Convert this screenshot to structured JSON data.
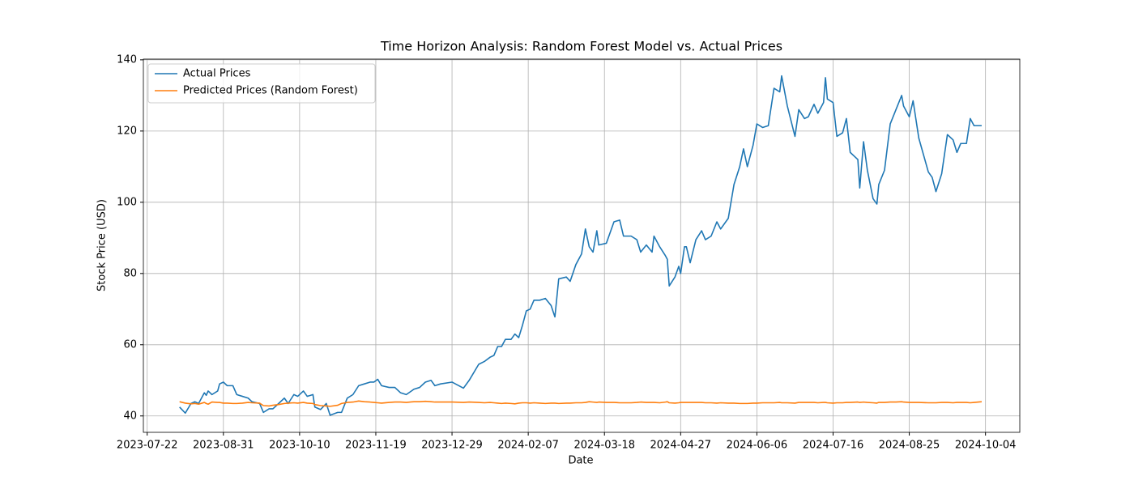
{
  "chart_data": {
    "type": "line",
    "title": "Time Horizon Analysis: Random Forest Model vs. Actual Prices",
    "x_label": "Date",
    "y_label": "Stock Price (USD)",
    "x": [
      "2023-08-08",
      "2023-08-11",
      "2023-08-14",
      "2023-08-16",
      "2023-08-18",
      "2023-08-21",
      "2023-08-22",
      "2023-08-23",
      "2023-08-25",
      "2023-08-28",
      "2023-08-29",
      "2023-08-31",
      "2023-09-02",
      "2023-09-05",
      "2023-09-07",
      "2023-09-10",
      "2023-09-13",
      "2023-09-15",
      "2023-09-19",
      "2023-09-21",
      "2023-09-24",
      "2023-09-26",
      "2023-09-29",
      "2023-10-02",
      "2023-10-04",
      "2023-10-07",
      "2023-10-09",
      "2023-10-12",
      "2023-10-14",
      "2023-10-17",
      "2023-10-18",
      "2023-10-21",
      "2023-10-24",
      "2023-10-26",
      "2023-10-30",
      "2023-11-01",
      "2023-11-04",
      "2023-11-07",
      "2023-11-10",
      "2023-11-13",
      "2023-11-16",
      "2023-11-18",
      "2023-11-20",
      "2023-11-22",
      "2023-11-26",
      "2023-11-29",
      "2023-12-02",
      "2023-12-05",
      "2023-12-09",
      "2023-12-12",
      "2023-12-15",
      "2023-12-18",
      "2023-12-20",
      "2023-12-23",
      "2023-12-29",
      "2024-01-04",
      "2024-01-07",
      "2024-01-12",
      "2024-01-15",
      "2024-01-18",
      "2024-01-20",
      "2024-01-22",
      "2024-01-24",
      "2024-01-26",
      "2024-01-29",
      "2024-01-31",
      "2024-02-02",
      "2024-02-04",
      "2024-02-06",
      "2024-02-08",
      "2024-02-10",
      "2024-02-13",
      "2024-02-16",
      "2024-02-19",
      "2024-02-21",
      "2024-02-23",
      "2024-02-27",
      "2024-02-29",
      "2024-03-03",
      "2024-03-06",
      "2024-03-08",
      "2024-03-10",
      "2024-03-12",
      "2024-03-14",
      "2024-03-15",
      "2024-03-19",
      "2024-03-23",
      "2024-03-26",
      "2024-03-28",
      "2024-04-01",
      "2024-04-04",
      "2024-04-06",
      "2024-04-09",
      "2024-04-12",
      "2024-04-13",
      "2024-04-16",
      "2024-04-19",
      "2024-04-20",
      "2024-04-21",
      "2024-04-24",
      "2024-04-26",
      "2024-04-27",
      "2024-04-29",
      "2024-04-30",
      "2024-05-02",
      "2024-05-05",
      "2024-05-08",
      "2024-05-10",
      "2024-05-13",
      "2024-05-16",
      "2024-05-18",
      "2024-05-22",
      "2024-05-25",
      "2024-05-28",
      "2024-05-30",
      "2024-06-01",
      "2024-06-04",
      "2024-06-06",
      "2024-06-09",
      "2024-06-12",
      "2024-06-15",
      "2024-06-18",
      "2024-06-19",
      "2024-06-22",
      "2024-06-26",
      "2024-06-28",
      "2024-07-01",
      "2024-07-03",
      "2024-07-06",
      "2024-07-08",
      "2024-07-11",
      "2024-07-12",
      "2024-07-13",
      "2024-07-16",
      "2024-07-18",
      "2024-07-21",
      "2024-07-23",
      "2024-07-25",
      "2024-07-29",
      "2024-07-30",
      "2024-08-01",
      "2024-08-03",
      "2024-08-06",
      "2024-08-08",
      "2024-08-09",
      "2024-08-12",
      "2024-08-15",
      "2024-08-18",
      "2024-08-21",
      "2024-08-22",
      "2024-08-25",
      "2024-08-27",
      "2024-08-30",
      "2024-09-04",
      "2024-09-06",
      "2024-09-08",
      "2024-09-11",
      "2024-09-14",
      "2024-09-17",
      "2024-09-19",
      "2024-09-21",
      "2024-09-24",
      "2024-09-26",
      "2024-09-28",
      "2024-10-02"
    ],
    "series": [
      {
        "name": "Actual Prices",
        "color": "#1f77b4",
        "values": [
          42.5,
          40.8,
          43.5,
          44,
          43.5,
          46.5,
          45.8,
          47,
          46,
          47,
          49,
          49.5,
          48.5,
          48.5,
          46,
          45.5,
          45,
          44,
          43.5,
          41,
          42,
          42,
          43.5,
          45,
          43.5,
          46,
          45.5,
          47,
          45.5,
          46,
          42.5,
          41.8,
          43.5,
          40.2,
          41,
          41,
          45,
          46,
          48.5,
          49,
          49.5,
          49.5,
          50.3,
          48.5,
          48,
          48,
          46.5,
          46,
          47.5,
          48,
          49.5,
          50,
          48.5,
          49,
          49.5,
          47.8,
          50,
          54.5,
          55.3,
          56.5,
          57,
          59.5,
          59.5,
          61.5,
          61.5,
          63,
          62,
          65.5,
          69.5,
          70,
          72.5,
          72.5,
          73,
          71,
          67.8,
          78.5,
          79,
          77.8,
          82.5,
          85.5,
          92.5,
          87.5,
          86,
          92,
          88,
          88.5,
          94.5,
          95,
          90.5,
          90.5,
          89.5,
          86,
          88,
          86,
          90.5,
          87.5,
          85,
          84,
          76.5,
          79,
          82,
          80,
          87.5,
          87.5,
          83,
          89.5,
          92,
          89.5,
          90.5,
          94.5,
          92.5,
          95.5,
          105,
          110,
          115,
          110,
          116,
          122,
          121,
          121.5,
          132,
          131,
          135.5,
          127,
          118.5,
          126,
          123.5,
          124,
          127.5,
          125,
          128,
          135,
          129,
          128,
          118.5,
          119.5,
          123.5,
          114,
          112,
          104,
          117,
          109,
          101,
          99.5,
          105,
          109,
          122,
          126,
          130,
          127,
          124,
          128.5,
          118,
          108.5,
          107,
          103,
          108,
          119,
          117.5,
          114,
          116.5,
          116.5,
          123.5,
          121.5,
          121.5
        ]
      },
      {
        "name": "Predicted Prices (Random Forest)",
        "color": "#ff7f0e",
        "values": [
          44,
          43.6,
          43.4,
          43.5,
          43.3,
          43.8,
          43.5,
          43.3,
          43.9,
          43.8,
          43.8,
          43.6,
          43.6,
          43.5,
          43.5,
          43.6,
          43.8,
          43.7,
          43.6,
          42.9,
          42.8,
          43.0,
          43.2,
          43.5,
          43.6,
          43.7,
          43.6,
          43.8,
          43.6,
          43.5,
          43.2,
          42.9,
          42.8,
          42.7,
          43.0,
          43.5,
          43.8,
          43.9,
          44.2,
          44.0,
          43.9,
          43.8,
          43.7,
          43.6,
          43.8,
          43.9,
          43.9,
          43.8,
          44.0,
          44.0,
          44.1,
          44.0,
          43.9,
          43.9,
          43.9,
          43.8,
          43.9,
          43.8,
          43.7,
          43.8,
          43.7,
          43.6,
          43.5,
          43.6,
          43.5,
          43.4,
          43.6,
          43.7,
          43.7,
          43.6,
          43.7,
          43.6,
          43.5,
          43.6,
          43.6,
          43.5,
          43.6,
          43.6,
          43.7,
          43.7,
          43.8,
          44.0,
          43.9,
          43.8,
          43.9,
          43.8,
          43.8,
          43.7,
          43.7,
          43.7,
          43.8,
          43.9,
          43.8,
          43.8,
          43.8,
          43.7,
          43.9,
          44.0,
          43.7,
          43.6,
          43.7,
          43.8,
          43.8,
          43.8,
          43.8,
          43.8,
          43.8,
          43.7,
          43.7,
          43.6,
          43.7,
          43.6,
          43.6,
          43.5,
          43.5,
          43.5,
          43.6,
          43.6,
          43.7,
          43.7,
          43.7,
          43.8,
          43.7,
          43.7,
          43.6,
          43.8,
          43.8,
          43.8,
          43.8,
          43.7,
          43.8,
          43.8,
          43.7,
          43.6,
          43.7,
          43.7,
          43.8,
          43.8,
          43.9,
          43.8,
          43.9,
          43.8,
          43.7,
          43.6,
          43.8,
          43.8,
          43.9,
          43.9,
          44.0,
          43.9,
          43.8,
          43.8,
          43.8,
          43.7,
          43.7,
          43.7,
          43.8,
          43.8,
          43.7,
          43.8,
          43.8,
          43.8,
          43.7,
          43.8,
          44.0
        ]
      }
    ],
    "xlim": [
      "2023-07-20",
      "2024-10-22"
    ],
    "xticks": [
      "2023-07-22",
      "2023-08-31",
      "2023-10-10",
      "2023-11-19",
      "2023-12-29",
      "2024-02-07",
      "2024-03-18",
      "2024-04-27",
      "2024-06-06",
      "2024-07-16",
      "2024-08-25",
      "2024-10-04"
    ],
    "ylim": [
      35.4,
      140.2
    ],
    "yticks": [
      40,
      60,
      80,
      100,
      120,
      140
    ],
    "grid": true,
    "legend": "upper left"
  }
}
